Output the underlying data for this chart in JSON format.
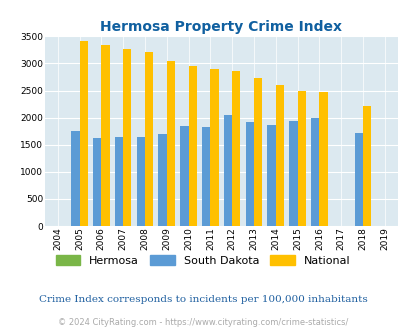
{
  "title": "Hermosa Property Crime Index",
  "years": [
    2004,
    2005,
    2006,
    2007,
    2008,
    2009,
    2010,
    2011,
    2012,
    2013,
    2014,
    2015,
    2016,
    2017,
    2018,
    2019
  ],
  "south_dakota": [
    0,
    1750,
    1620,
    1640,
    1645,
    1700,
    1840,
    1820,
    2050,
    1920,
    1870,
    1940,
    2000,
    0,
    1720,
    0
  ],
  "national": [
    0,
    3420,
    3340,
    3270,
    3210,
    3040,
    2960,
    2900,
    2860,
    2730,
    2600,
    2500,
    2480,
    0,
    2210,
    0
  ],
  "hermosa": [
    0,
    0,
    0,
    0,
    0,
    0,
    0,
    0,
    0,
    0,
    0,
    0,
    0,
    0,
    0,
    0
  ],
  "bar_width": 0.38,
  "colors": {
    "hermosa": "#7ab648",
    "south_dakota": "#5b9bd5",
    "national": "#ffc000"
  },
  "ylim": [
    0,
    3500
  ],
  "yticks": [
    0,
    500,
    1000,
    1500,
    2000,
    2500,
    3000,
    3500
  ],
  "bg_color": "#dce9f0",
  "title_color": "#1060a0",
  "subtitle": "Crime Index corresponds to incidents per 100,000 inhabitants",
  "footer": "© 2024 CityRating.com - https://www.cityrating.com/crime-statistics/",
  "subtitle_color": "#2060a0",
  "footer_color": "#aaaaaa"
}
